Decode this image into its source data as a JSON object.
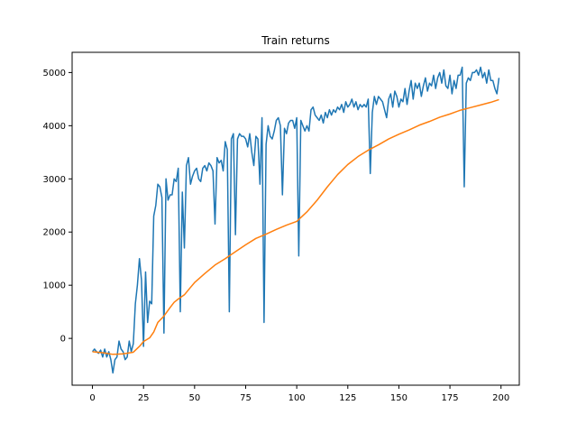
{
  "chart_data": {
    "type": "line",
    "title": "Train returns",
    "xlabel": "",
    "ylabel": "",
    "xlim": [
      -9.95,
      208.95
    ],
    "ylim": [
      -880,
      5380
    ],
    "xticks": [
      0,
      25,
      50,
      75,
      100,
      125,
      150,
      175,
      200
    ],
    "yticks": [
      0,
      1000,
      2000,
      3000,
      4000,
      5000
    ],
    "grid": false,
    "legend": "none",
    "colors": {
      "raw": "#1f77b4",
      "smoothed": "#ff7f0e"
    },
    "series": [
      {
        "values": [
          [
            0,
            -250
          ],
          [
            1,
            -200
          ],
          [
            2,
            -250
          ],
          [
            3,
            -280
          ],
          [
            4,
            -220
          ],
          [
            5,
            -350
          ],
          [
            6,
            -200
          ],
          [
            7,
            -350
          ],
          [
            8,
            -250
          ],
          [
            9,
            -400
          ],
          [
            10,
            -650
          ],
          [
            11,
            -400
          ],
          [
            12,
            -350
          ],
          [
            13,
            -50
          ],
          [
            14,
            -200
          ],
          [
            15,
            -250
          ],
          [
            16,
            -400
          ],
          [
            17,
            -350
          ],
          [
            18,
            -50
          ],
          [
            19,
            -250
          ],
          [
            20,
            -100
          ],
          [
            21,
            650
          ],
          [
            22,
            1000
          ],
          [
            23,
            1500
          ],
          [
            24,
            1100
          ],
          [
            25,
            -150
          ],
          [
            26,
            1250
          ],
          [
            27,
            300
          ],
          [
            28,
            700
          ],
          [
            29,
            650
          ],
          [
            30,
            2300
          ],
          [
            31,
            2500
          ],
          [
            32,
            2900
          ],
          [
            33,
            2850
          ],
          [
            34,
            2650
          ],
          [
            35,
            100
          ],
          [
            36,
            3000
          ],
          [
            37,
            2600
          ],
          [
            38,
            2700
          ],
          [
            39,
            2700
          ],
          [
            40,
            3000
          ],
          [
            41,
            2950
          ],
          [
            42,
            3200
          ],
          [
            43,
            500
          ],
          [
            44,
            2750
          ],
          [
            45,
            1700
          ],
          [
            46,
            3250
          ],
          [
            47,
            3400
          ],
          [
            48,
            2900
          ],
          [
            49,
            3050
          ],
          [
            50,
            3150
          ],
          [
            51,
            3200
          ],
          [
            52,
            3000
          ],
          [
            53,
            2950
          ],
          [
            54,
            3200
          ],
          [
            55,
            3250
          ],
          [
            56,
            3150
          ],
          [
            57,
            3300
          ],
          [
            58,
            3250
          ],
          [
            59,
            3150
          ],
          [
            60,
            2150
          ],
          [
            61,
            3400
          ],
          [
            62,
            3300
          ],
          [
            63,
            3350
          ],
          [
            64,
            3150
          ],
          [
            65,
            3700
          ],
          [
            66,
            3550
          ],
          [
            67,
            500
          ],
          [
            68,
            3750
          ],
          [
            69,
            3850
          ],
          [
            70,
            1950
          ],
          [
            71,
            3750
          ],
          [
            72,
            3850
          ],
          [
            73,
            3800
          ],
          [
            74,
            3800
          ],
          [
            75,
            3750
          ],
          [
            76,
            3600
          ],
          [
            77,
            3850
          ],
          [
            78,
            3500
          ],
          [
            79,
            3250
          ],
          [
            80,
            3800
          ],
          [
            81,
            3750
          ],
          [
            82,
            2900
          ],
          [
            83,
            4150
          ],
          [
            84,
            300
          ],
          [
            85,
            3650
          ],
          [
            86,
            4000
          ],
          [
            87,
            3800
          ],
          [
            88,
            3750
          ],
          [
            89,
            3900
          ],
          [
            90,
            4100
          ],
          [
            91,
            4150
          ],
          [
            92,
            4000
          ],
          [
            93,
            2700
          ],
          [
            94,
            3950
          ],
          [
            95,
            3850
          ],
          [
            96,
            4050
          ],
          [
            97,
            4100
          ],
          [
            98,
            4100
          ],
          [
            99,
            3950
          ],
          [
            100,
            4150
          ],
          [
            101,
            1550
          ],
          [
            102,
            4100
          ],
          [
            103,
            4000
          ],
          [
            104,
            3900
          ],
          [
            105,
            4000
          ],
          [
            106,
            3900
          ],
          [
            107,
            4300
          ],
          [
            108,
            4350
          ],
          [
            109,
            4200
          ],
          [
            110,
            4150
          ],
          [
            111,
            4100
          ],
          [
            112,
            4200
          ],
          [
            113,
            4050
          ],
          [
            114,
            4250
          ],
          [
            115,
            4150
          ],
          [
            116,
            4300
          ],
          [
            117,
            4200
          ],
          [
            118,
            4300
          ],
          [
            119,
            4250
          ],
          [
            120,
            4350
          ],
          [
            121,
            4300
          ],
          [
            122,
            4400
          ],
          [
            123,
            4250
          ],
          [
            124,
            4450
          ],
          [
            125,
            4350
          ],
          [
            126,
            4400
          ],
          [
            127,
            4500
          ],
          [
            128,
            4350
          ],
          [
            129,
            4450
          ],
          [
            130,
            4300
          ],
          [
            131,
            4400
          ],
          [
            132,
            4350
          ],
          [
            133,
            4400
          ],
          [
            134,
            4350
          ],
          [
            135,
            4500
          ],
          [
            136,
            3100
          ],
          [
            137,
            4250
          ],
          [
            138,
            4550
          ],
          [
            139,
            4400
          ],
          [
            140,
            4550
          ],
          [
            141,
            4500
          ],
          [
            142,
            4450
          ],
          [
            143,
            4300
          ],
          [
            144,
            4150
          ],
          [
            145,
            4500
          ],
          [
            146,
            4600
          ],
          [
            147,
            4350
          ],
          [
            148,
            4650
          ],
          [
            149,
            4550
          ],
          [
            150,
            4350
          ],
          [
            151,
            4500
          ],
          [
            152,
            4450
          ],
          [
            153,
            4700
          ],
          [
            154,
            4400
          ],
          [
            155,
            4650
          ],
          [
            156,
            4850
          ],
          [
            157,
            4500
          ],
          [
            158,
            4800
          ],
          [
            159,
            4700
          ],
          [
            160,
            4800
          ],
          [
            161,
            4550
          ],
          [
            162,
            4750
          ],
          [
            163,
            4900
          ],
          [
            164,
            4650
          ],
          [
            165,
            4800
          ],
          [
            166,
            4750
          ],
          [
            167,
            4950
          ],
          [
            168,
            4700
          ],
          [
            169,
            4900
          ],
          [
            170,
            5000
          ],
          [
            171,
            4800
          ],
          [
            172,
            5050
          ],
          [
            173,
            4750
          ],
          [
            174,
            4700
          ],
          [
            175,
            4950
          ],
          [
            176,
            4600
          ],
          [
            177,
            4850
          ],
          [
            178,
            4700
          ],
          [
            179,
            4950
          ],
          [
            180,
            4950
          ],
          [
            181,
            5100
          ],
          [
            182,
            2850
          ],
          [
            183,
            4800
          ],
          [
            184,
            4900
          ],
          [
            185,
            4850
          ],
          [
            186,
            5000
          ],
          [
            187,
            5000
          ],
          [
            188,
            5050
          ],
          [
            189,
            4950
          ],
          [
            190,
            5100
          ],
          [
            191,
            4900
          ],
          [
            192,
            5000
          ],
          [
            193,
            4800
          ],
          [
            194,
            5050
          ],
          [
            195,
            4850
          ],
          [
            196,
            4850
          ],
          [
            197,
            4700
          ],
          [
            198,
            4600
          ],
          [
            199,
            4900
          ]
        ]
      },
      {
        "values": [
          [
            0,
            -250
          ],
          [
            5,
            -270
          ],
          [
            10,
            -300
          ],
          [
            15,
            -290
          ],
          [
            20,
            -260
          ],
          [
            23,
            -150
          ],
          [
            25,
            -60
          ],
          [
            28,
            10
          ],
          [
            30,
            120
          ],
          [
            32,
            300
          ],
          [
            35,
            420
          ],
          [
            38,
            580
          ],
          [
            40,
            680
          ],
          [
            42,
            740
          ],
          [
            45,
            820
          ],
          [
            48,
            960
          ],
          [
            50,
            1050
          ],
          [
            55,
            1220
          ],
          [
            60,
            1380
          ],
          [
            65,
            1500
          ],
          [
            70,
            1630
          ],
          [
            75,
            1760
          ],
          [
            80,
            1880
          ],
          [
            85,
            1960
          ],
          [
            90,
            2050
          ],
          [
            95,
            2130
          ],
          [
            100,
            2200
          ],
          [
            105,
            2380
          ],
          [
            110,
            2600
          ],
          [
            115,
            2850
          ],
          [
            120,
            3080
          ],
          [
            125,
            3270
          ],
          [
            130,
            3420
          ],
          [
            135,
            3540
          ],
          [
            140,
            3640
          ],
          [
            145,
            3750
          ],
          [
            150,
            3840
          ],
          [
            155,
            3920
          ],
          [
            160,
            4010
          ],
          [
            165,
            4080
          ],
          [
            170,
            4160
          ],
          [
            175,
            4220
          ],
          [
            180,
            4290
          ],
          [
            185,
            4340
          ],
          [
            190,
            4390
          ],
          [
            195,
            4440
          ],
          [
            199,
            4490
          ]
        ]
      }
    ]
  }
}
